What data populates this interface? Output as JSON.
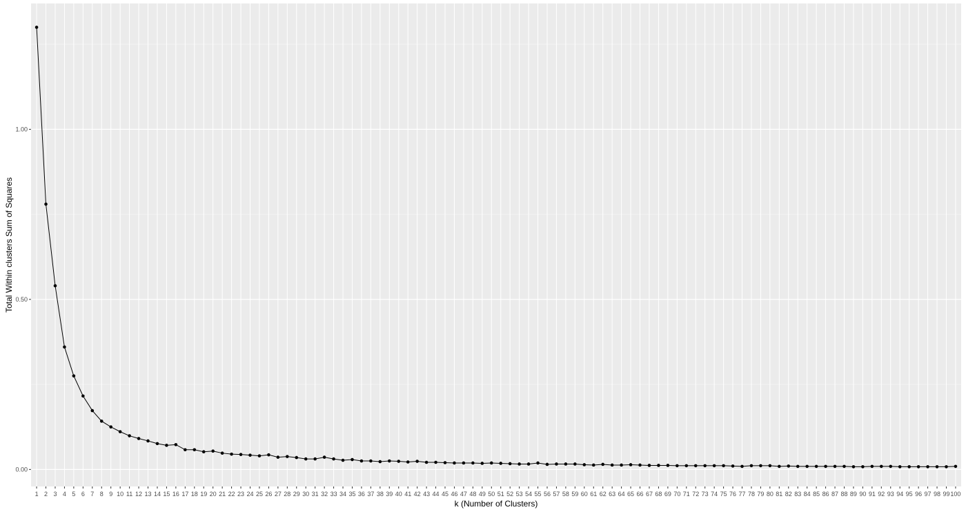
{
  "colors": {
    "panel_background": "#ebebeb",
    "grid_major": "#ffffff",
    "grid_minor": "#f5f5f5",
    "line": "#000000",
    "point": "#000000",
    "tick_text": "#4d4d4d"
  },
  "chart_data": {
    "type": "line",
    "title": "",
    "xlabel": "k (Number of Clusters)",
    "ylabel": "Total Within clusters Sum of Squares",
    "x": [
      1,
      2,
      3,
      4,
      5,
      6,
      7,
      8,
      9,
      10,
      11,
      12,
      13,
      14,
      15,
      16,
      17,
      18,
      19,
      20,
      21,
      22,
      23,
      24,
      25,
      26,
      27,
      28,
      29,
      30,
      31,
      32,
      33,
      34,
      35,
      36,
      37,
      38,
      39,
      40,
      41,
      42,
      43,
      44,
      45,
      46,
      47,
      48,
      49,
      50,
      51,
      52,
      53,
      54,
      55,
      56,
      57,
      58,
      59,
      60,
      61,
      62,
      63,
      64,
      65,
      66,
      67,
      68,
      69,
      70,
      71,
      72,
      73,
      74,
      75,
      76,
      77,
      78,
      79,
      80,
      81,
      82,
      83,
      84,
      85,
      86,
      87,
      88,
      89,
      90,
      91,
      92,
      93,
      94,
      95,
      96,
      97,
      98,
      99,
      100
    ],
    "y": [
      1.3,
      0.78,
      0.54,
      0.36,
      0.275,
      0.216,
      0.173,
      0.142,
      0.125,
      0.111,
      0.099,
      0.091,
      0.084,
      0.076,
      0.071,
      0.073,
      0.058,
      0.058,
      0.052,
      0.054,
      0.048,
      0.045,
      0.044,
      0.042,
      0.04,
      0.043,
      0.036,
      0.038,
      0.035,
      0.031,
      0.031,
      0.036,
      0.031,
      0.027,
      0.029,
      0.025,
      0.025,
      0.023,
      0.025,
      0.024,
      0.022,
      0.024,
      0.021,
      0.021,
      0.02,
      0.019,
      0.019,
      0.019,
      0.018,
      0.019,
      0.018,
      0.017,
      0.016,
      0.016,
      0.019,
      0.015,
      0.016,
      0.016,
      0.016,
      0.014,
      0.013,
      0.015,
      0.013,
      0.013,
      0.014,
      0.013,
      0.012,
      0.012,
      0.012,
      0.011,
      0.011,
      0.011,
      0.011,
      0.011,
      0.011,
      0.01,
      0.009,
      0.011,
      0.011,
      0.011,
      0.009,
      0.01,
      0.009,
      0.009,
      0.009,
      0.009,
      0.009,
      0.009,
      0.008,
      0.008,
      0.009,
      0.009,
      0.009,
      0.008,
      0.008,
      0.008,
      0.008,
      0.008,
      0.008,
      0.009
    ],
    "xticks": [
      1,
      2,
      3,
      4,
      5,
      6,
      7,
      8,
      9,
      10,
      11,
      12,
      13,
      14,
      15,
      16,
      17,
      18,
      19,
      20,
      21,
      22,
      23,
      24,
      25,
      26,
      27,
      28,
      29,
      30,
      31,
      32,
      33,
      34,
      35,
      36,
      37,
      38,
      39,
      40,
      41,
      42,
      43,
      44,
      45,
      46,
      47,
      48,
      49,
      50,
      51,
      52,
      53,
      54,
      55,
      56,
      57,
      58,
      59,
      60,
      61,
      62,
      63,
      64,
      65,
      66,
      67,
      68,
      69,
      70,
      71,
      72,
      73,
      74,
      75,
      76,
      77,
      78,
      79,
      80,
      81,
      82,
      83,
      84,
      85,
      86,
      87,
      88,
      89,
      90,
      91,
      92,
      93,
      94,
      95,
      96,
      97,
      98,
      99,
      100
    ],
    "yticks": [
      0.0,
      0.5,
      1.0
    ],
    "ytick_labels": [
      "0.00",
      "0.50",
      "1.00"
    ],
    "ylim": [
      -0.05,
      1.37
    ],
    "xlim": [
      0.4,
      100.6
    ],
    "grid": true,
    "legend": "none",
    "markers": true
  }
}
